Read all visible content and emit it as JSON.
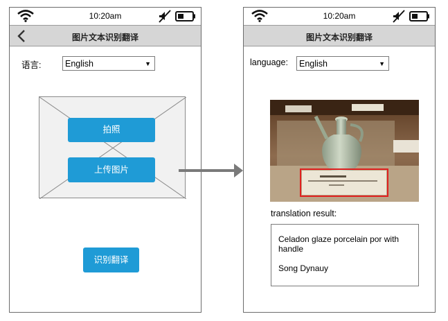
{
  "status": {
    "time": "10:20am"
  },
  "left_screen": {
    "title": "图片文本识别翻译",
    "language_label": "语言:",
    "language_value": "English",
    "take_photo_label": "拍照",
    "upload_label": "上传图片",
    "recognize_label": "识别翻译"
  },
  "right_screen": {
    "title": "图片文本识别翻译",
    "language_label": "language:",
    "language_value": "English",
    "result_label": "translation result:",
    "result_lines": [
      "Celadon glaze porcelain por with handle",
      "Song Dynauy"
    ]
  },
  "icons": {
    "wifi": "wifi-icon",
    "mute": "mute-icon",
    "battery": "battery-icon",
    "back": "chevron-left-icon",
    "dropdown": "triangle-down-icon",
    "image_placeholder": "image-placeholder-icon",
    "flow_arrow": "arrow-right-icon"
  },
  "colors": {
    "accent": "#1f9bd6",
    "titlebar": "#d6d6d6",
    "highlight_box": "#e02020"
  }
}
